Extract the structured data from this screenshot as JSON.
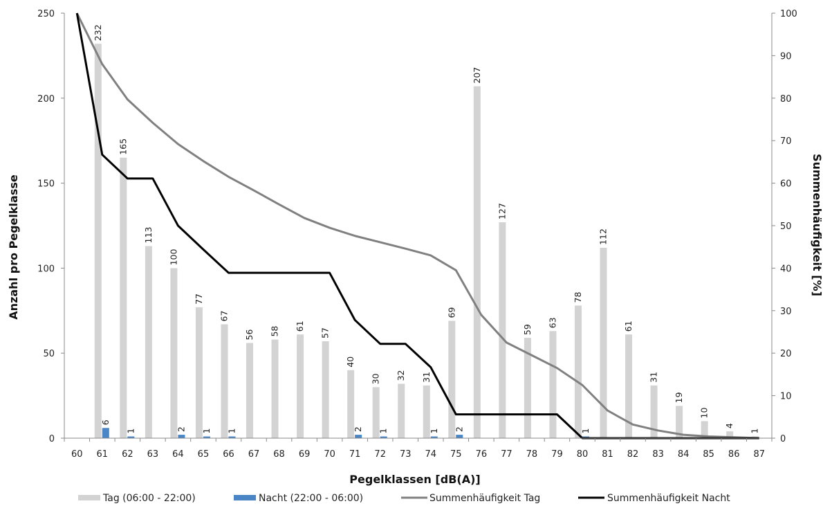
{
  "chart_data": {
    "type": "bar",
    "xlabel": "Pegelklassen [dB(A)]",
    "ylabel": "Anzahl pro Pegelklasse",
    "y2label": "Summenhäufigkeit [%]",
    "ylim": [
      0,
      250
    ],
    "y2lim": [
      0,
      100
    ],
    "yticks": [
      "0",
      "50",
      "100",
      "150",
      "200",
      "250"
    ],
    "y2ticks": [
      "0",
      "10",
      "20",
      "30",
      "40",
      "50",
      "60",
      "70",
      "80",
      "90",
      "100"
    ],
    "categories": [
      "60",
      "61",
      "62",
      "63",
      "64",
      "65",
      "66",
      "67",
      "68",
      "69",
      "70",
      "71",
      "72",
      "73",
      "74",
      "75",
      "76",
      "77",
      "78",
      "79",
      "80",
      "81",
      "82",
      "83",
      "84",
      "85",
      "86",
      "87"
    ],
    "bar_series": [
      {
        "name": "Tag (06:00 - 22:00)",
        "color": "#d3d3d3",
        "values": [
          null,
          232,
          165,
          113,
          100,
          77,
          67,
          56,
          58,
          61,
          57,
          40,
          30,
          32,
          31,
          69,
          207,
          127,
          59,
          63,
          78,
          112,
          61,
          31,
          19,
          10,
          4,
          1
        ],
        "labels": [
          "",
          "232",
          "165",
          "113",
          "100",
          "77",
          "67",
          "56",
          "58",
          "61",
          "57",
          "40",
          "30",
          "32",
          "31",
          "69",
          "207",
          "127",
          "59",
          "63",
          "78",
          "112",
          "61",
          "31",
          "19",
          "10",
          "4",
          "1"
        ]
      },
      {
        "name": "Nacht (22:00 - 06:00)",
        "color": "#4a86c5",
        "values": [
          null,
          6,
          1,
          null,
          2,
          1,
          1,
          null,
          null,
          null,
          null,
          2,
          1,
          null,
          1,
          2,
          null,
          null,
          null,
          null,
          1,
          null,
          null,
          null,
          null,
          null,
          null,
          null
        ],
        "labels": [
          "",
          "6",
          "1",
          "",
          "2",
          "1",
          "1",
          "",
          "",
          "",
          "",
          "2",
          "1",
          "",
          "1",
          "2",
          "",
          "",
          "",
          "",
          "1",
          "",
          "",
          "",
          "",
          "",
          "",
          ""
        ]
      }
    ],
    "line_series": [
      {
        "name": "Summenhäufigkeit Tag",
        "color": "#808080",
        "axis": "y2",
        "values": [
          100,
          88,
          79.7,
          74.2,
          69.2,
          65.2,
          61.5,
          58.3,
          55,
          51.8,
          49.5,
          47.6,
          46.1,
          44.6,
          43,
          39.5,
          29,
          22.5,
          19.5,
          16.5,
          12.5,
          6.5,
          3.2,
          1.8,
          0.8,
          0.4,
          0.2,
          0
        ]
      },
      {
        "name": "Summenhäufigkeit Nacht",
        "color": "#000000",
        "axis": "y2",
        "values": [
          100,
          66.7,
          61.1,
          61.1,
          50,
          44.4,
          38.9,
          38.9,
          38.9,
          38.9,
          38.9,
          27.8,
          22.2,
          22.2,
          16.7,
          5.6,
          5.6,
          5.6,
          5.6,
          5.6,
          0,
          0,
          0,
          0,
          0,
          0,
          0,
          0
        ]
      }
    ],
    "legend_position": "bottom",
    "grid": false
  }
}
